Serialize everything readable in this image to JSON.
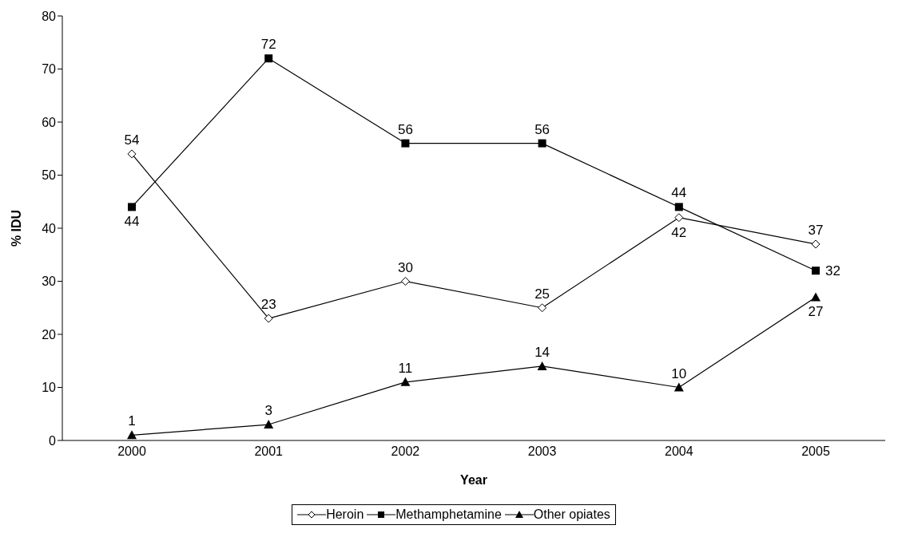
{
  "chart_data": {
    "type": "line",
    "xlabel": "Year",
    "ylabel": "% IDU",
    "categories": [
      "2000",
      "2001",
      "2002",
      "2003",
      "2004",
      "2005"
    ],
    "series": [
      {
        "name": "Heroin",
        "color": "#000000",
        "marker": "diamond",
        "values": [
          54,
          23,
          30,
          25,
          42,
          37
        ]
      },
      {
        "name": "Methamphetamine",
        "color": "#000000",
        "marker": "square",
        "values": [
          44,
          72,
          56,
          56,
          44,
          32
        ]
      },
      {
        "name": "Other opiates",
        "color": "#000000",
        "marker": "triangle",
        "values": [
          1,
          3,
          11,
          14,
          10,
          27
        ]
      }
    ],
    "ylim": [
      0,
      80
    ],
    "yticks": [
      0,
      10,
      20,
      30,
      40,
      50,
      60,
      70,
      80
    ],
    "grid": false,
    "legend": "bottom",
    "data_labels": true
  }
}
